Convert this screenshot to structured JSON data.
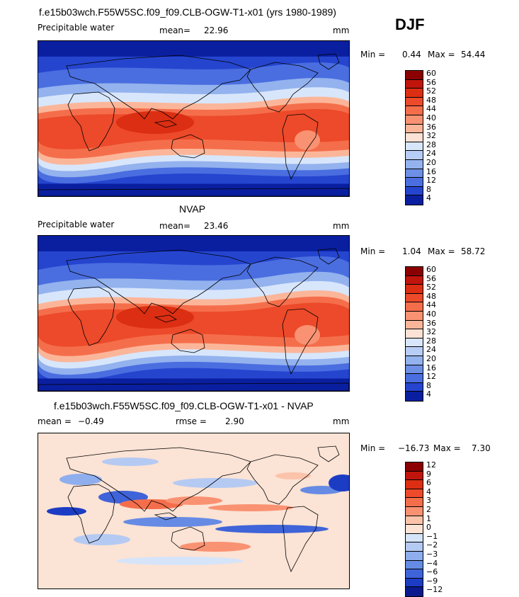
{
  "season": "DJF",
  "chart_data": [
    {
      "type": "heatmap",
      "title": "f.e15b03wch.F55W5SC.f09_f09.CLB-OGW-T1-x01 (yrs 1980-1989)",
      "variable": "Precipitable water",
      "mean_label": "mean=",
      "mean": "22.96",
      "units": "mm",
      "min_label": "Min =",
      "min": "0.44",
      "max_label": "Max =",
      "max": "54.44",
      "levels": [
        "60",
        "56",
        "52",
        "48",
        "44",
        "40",
        "36",
        "32",
        "28",
        "24",
        "20",
        "16",
        "12",
        "8",
        "4"
      ],
      "colors": [
        "#8b0000",
        "#c0150c",
        "#dc2e12",
        "#ec4a2a",
        "#f56e4b",
        "#f99272",
        "#fbb69a",
        "#fce2d6",
        "#d8e6fb",
        "#b8cdf5",
        "#93b2ee",
        "#6d8fe6",
        "#4a6ee0",
        "#2545cf",
        "#0a1fa0"
      ]
    },
    {
      "type": "heatmap",
      "title": "NVAP",
      "variable": "Precipitable water",
      "mean_label": "mean=",
      "mean": "23.46",
      "units": "mm",
      "min_label": "Min =",
      "min": "1.04",
      "max_label": "Max =",
      "max": "58.72",
      "levels": [
        "60",
        "56",
        "52",
        "48",
        "44",
        "40",
        "36",
        "32",
        "28",
        "24",
        "20",
        "16",
        "12",
        "8",
        "4"
      ],
      "colors": [
        "#8b0000",
        "#c0150c",
        "#dc2e12",
        "#ec4a2a",
        "#f56e4b",
        "#f99272",
        "#fbb69a",
        "#fce2d6",
        "#d8e6fb",
        "#b8cdf5",
        "#93b2ee",
        "#6d8fe6",
        "#4a6ee0",
        "#2545cf",
        "#0a1fa0"
      ]
    },
    {
      "type": "heatmap",
      "title": "f.e15b03wch.F55W5SC.f09_f09.CLB-OGW-T1-x01 - NVAP",
      "mean_label": "mean =",
      "mean": "−0.49",
      "rmse_label": "rmse =",
      "rmse": "2.90",
      "units": "mm",
      "min_label": "Min =",
      "min": "−16.73",
      "max_label": "Max =",
      "max": "7.30",
      "levels": [
        "12",
        "9",
        "6",
        "4",
        "3",
        "2",
        "1",
        "0",
        "−1",
        "−2",
        "−3",
        "−4",
        "−6",
        "−9",
        "−12"
      ],
      "colors": [
        "#8b0000",
        "#c0150c",
        "#dc2e12",
        "#ec4a2a",
        "#f56e4b",
        "#f99272",
        "#fbc3aa",
        "#fbe3d5",
        "#d6e4fa",
        "#b5caf3",
        "#8eaeee",
        "#668be4",
        "#3f63d8",
        "#1c3cc4",
        "#0a1a8e"
      ]
    }
  ]
}
